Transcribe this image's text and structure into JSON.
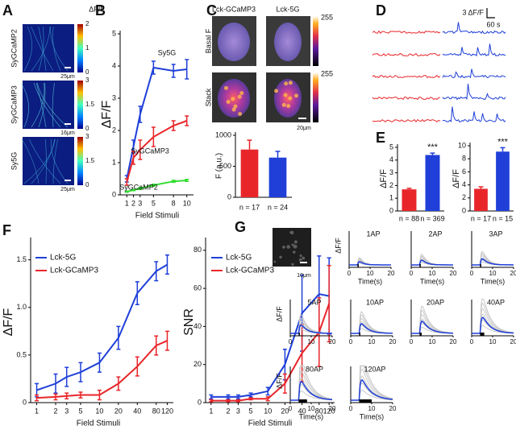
{
  "panel_labels": [
    "A",
    "B",
    "C",
    "D",
    "E",
    "F",
    "G"
  ],
  "panel_a": {
    "colorbar_title": "ΔF/F",
    "images": [
      {
        "label": "SyGCaMP2",
        "colorbar_ticks": [
          0,
          1,
          2
        ],
        "scale_bar": "25μm"
      },
      {
        "label": "SyGCaMP3",
        "colorbar_ticks": [
          0,
          1.5,
          3
        ],
        "scale_bar": "16μm"
      },
      {
        "label": "Sy5G",
        "colorbar_ticks": [
          0,
          1.5,
          3
        ],
        "scale_bar": "25μm"
      }
    ]
  },
  "panel_c": {
    "columns": [
      "Lck-GCaMP3",
      "Lck-5G"
    ],
    "rows": [
      "Basal F",
      "Stack"
    ],
    "colorbar_ticks": [
      255,
      255
    ],
    "scale_bar": "20μm"
  },
  "panel_d": {
    "scale_y": "3 ΔF/F",
    "scale_x": "60 s"
  },
  "panel_g": {
    "scale_bar": "10μm",
    "xticks": [
      0,
      10,
      20
    ],
    "panels": [
      {
        "title": "1AP",
        "ylabel": "ΔF/F",
        "xlabel": "Time(s)"
      },
      {
        "title": "2AP",
        "xlabel": "Time(s)"
      },
      {
        "title": "3AP",
        "xlabel": "Time(s)"
      },
      {
        "title": "5AP",
        "ylabel": "ΔF/F"
      },
      {
        "title": "10AP"
      },
      {
        "title": "20AP"
      },
      {
        "title": "40AP"
      },
      {
        "title": "80AP",
        "ylabel": "ΔF/F",
        "xlabel": "Time(s)"
      },
      {
        "title": "120AP",
        "xlabel": "Time(s)"
      }
    ]
  },
  "chart_data": [
    {
      "type": "line",
      "xlabel": "Field Stimuli",
      "ylabel": "ΔF/F",
      "x": [
        1,
        2,
        3,
        5,
        8,
        10
      ],
      "xlim": [
        0,
        11
      ],
      "xticks": [
        1,
        2,
        3,
        5,
        8,
        10
      ],
      "ylim": [
        0,
        5
      ],
      "yticks": [
        0,
        1,
        2,
        3,
        4,
        5
      ],
      "legend": "inline",
      "series": [
        {
          "name": "Sy5G",
          "color": "#1f3fd8",
          "values": [
            0.5,
            1.5,
            2.5,
            3.95,
            3.85,
            3.9
          ],
          "errors": [
            0.1,
            0.2,
            0.25,
            0.2,
            0.2,
            0.3
          ]
        },
        {
          "name": "SyGCaMP3",
          "color": "#e8262a",
          "values": [
            0.4,
            1.15,
            1.4,
            1.8,
            2.15,
            2.3
          ],
          "errors": [
            0.1,
            0.2,
            0.3,
            0.3,
            0.15,
            0.15
          ]
        },
        {
          "name": "SyGCaMP2",
          "color": "#33dd33",
          "values": [
            0.1,
            0.15,
            0.2,
            0.3,
            0.42,
            0.45
          ],
          "errors": [
            0.02,
            0.02,
            0.03,
            0.03,
            0.03,
            0.03
          ]
        }
      ]
    },
    {
      "type": "bar",
      "ylabel": "F (a.u.)",
      "categories": [
        "n = 17",
        "n = 24"
      ],
      "values": [
        770,
        640
      ],
      "errors": [
        150,
        100
      ],
      "colors": [
        "#e8262a",
        "#1f3fd8"
      ],
      "ylim": [
        0,
        1000
      ],
      "yticks": [
        0,
        500,
        1000
      ]
    },
    {
      "type": "bar",
      "ylabel": "ΔF/F",
      "categories": [
        "n = 88",
        "n = 369"
      ],
      "values": [
        1.7,
        4.4
      ],
      "errors": [
        0.08,
        0.15
      ],
      "colors": [
        "#e8262a",
        "#1f3fd8"
      ],
      "ylim": [
        0,
        5
      ],
      "yticks": [
        0,
        1,
        2,
        3,
        4,
        5
      ],
      "annotation": "***"
    },
    {
      "type": "bar",
      "ylabel": "ΔF/F",
      "categories": [
        "n = 17",
        "n = 15"
      ],
      "values": [
        3.4,
        9.1
      ],
      "errors": [
        0.3,
        0.6
      ],
      "colors": [
        "#e8262a",
        "#1f3fd8"
      ],
      "ylim": [
        0,
        10
      ],
      "yticks": [
        0,
        2,
        4,
        6,
        8,
        10
      ],
      "annotation": "***"
    },
    {
      "type": "line",
      "xscale": "log",
      "xlabel": "Field Stimuli",
      "ylabel": "ΔF/F",
      "x": [
        1,
        2,
        3,
        5,
        10,
        20,
        40,
        80,
        120
      ],
      "xlim": [
        0.8,
        150
      ],
      "xticks": [
        1,
        2,
        3,
        5,
        10,
        20,
        40,
        80,
        120
      ],
      "ylim": [
        0,
        1.7
      ],
      "yticks": [
        0,
        0.5,
        {
          "value": 1,
          "label": "1.0"
        },
        1.5
      ],
      "legend": "upper left",
      "series": [
        {
          "name": "Lck-5G",
          "color": "#1f3fd8",
          "values": [
            0.13,
            0.2,
            0.27,
            0.32,
            0.42,
            0.68,
            1.15,
            1.38,
            1.45
          ],
          "errors": [
            0.07,
            0.1,
            0.1,
            0.1,
            0.1,
            0.12,
            0.12,
            0.1,
            0.1
          ]
        },
        {
          "name": "Lck-GCaMP3",
          "color": "#e8262a",
          "values": [
            0.05,
            0.06,
            0.07,
            0.08,
            0.08,
            0.2,
            0.38,
            0.6,
            0.65
          ],
          "errors": [
            0.03,
            0.03,
            0.03,
            0.03,
            0.05,
            0.07,
            0.1,
            0.1,
            0.1
          ]
        }
      ]
    },
    {
      "type": "line",
      "xscale": "log",
      "xlabel": "Field Stimuli",
      "ylabel": "SNR",
      "x": [
        1,
        2,
        3,
        5,
        10,
        20,
        40,
        80,
        120
      ],
      "xlim": [
        0.8,
        150
      ],
      "xticks": [
        1,
        2,
        3,
        5,
        10,
        20,
        40,
        80,
        120
      ],
      "ylim": [
        0,
        85
      ],
      "yticks": [
        0,
        20,
        40,
        60,
        80
      ],
      "legend": "upper left",
      "series": [
        {
          "name": "Lck-5G",
          "color": "#1f3fd8",
          "values": [
            3,
            3,
            3,
            4,
            6,
            20,
            47,
            57,
            56
          ],
          "errors": [
            1,
            1,
            1,
            1,
            2,
            8,
            20,
            20,
            20
          ]
        },
        {
          "name": "Lck-GCaMP3",
          "color": "#e8262a",
          "values": [
            1,
            1,
            1,
            2,
            2,
            10,
            26,
            37,
            52
          ],
          "errors": [
            0.5,
            0.5,
            0.5,
            0.5,
            1,
            5,
            15,
            18,
            20
          ]
        }
      ]
    }
  ]
}
